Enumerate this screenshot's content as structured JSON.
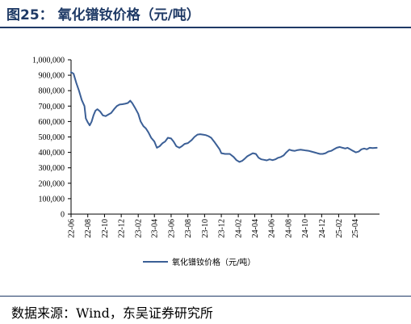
{
  "figure": {
    "title": "图25：  氧化镨钕价格（元/吨）",
    "source": "数据来源：Wind，东吴证券研究所"
  },
  "colors": {
    "series": "#3b5f96",
    "title": "#1f3a66"
  },
  "chart_data": {
    "type": "line",
    "title": "",
    "xlabel": "",
    "ylabel": "",
    "ylim": [
      0,
      1000000
    ],
    "yticks": [
      0,
      100000,
      200000,
      300000,
      400000,
      500000,
      600000,
      700000,
      800000,
      900000,
      1000000
    ],
    "ytick_labels": [
      "0",
      "100,000",
      "200,000",
      "300,000",
      "400,000",
      "500,000",
      "600,000",
      "700,000",
      "800,000",
      "900,000",
      "1,000,000"
    ],
    "xlim": [
      "2022-06-01",
      "2025-06-30"
    ],
    "xtick_labels": [
      "22-06",
      "22-08",
      "22-10",
      "22-12",
      "23-02",
      "23-04",
      "23-06",
      "23-08",
      "23-10",
      "23-12",
      "24-02",
      "24-04",
      "24-06",
      "24-08",
      "24-10",
      "24-12",
      "25-02",
      "25-04"
    ],
    "grid": false,
    "legend": "bottom",
    "series": [
      {
        "name": "氧化镨钕价格（元/吨）",
        "points": [
          [
            "2022-06-01",
            920000
          ],
          [
            "2022-06-10",
            910000
          ],
          [
            "2022-06-20",
            850000
          ],
          [
            "2022-06-30",
            800000
          ],
          [
            "2022-07-10",
            740000
          ],
          [
            "2022-07-20",
            700000
          ],
          [
            "2022-07-25",
            620000
          ],
          [
            "2022-08-01",
            595000
          ],
          [
            "2022-08-08",
            575000
          ],
          [
            "2022-08-15",
            600000
          ],
          [
            "2022-08-22",
            640000
          ],
          [
            "2022-08-29",
            670000
          ],
          [
            "2022-09-05",
            680000
          ],
          [
            "2022-09-15",
            665000
          ],
          [
            "2022-09-25",
            640000
          ],
          [
            "2022-10-05",
            635000
          ],
          [
            "2022-10-15",
            645000
          ],
          [
            "2022-10-25",
            655000
          ],
          [
            "2022-11-05",
            680000
          ],
          [
            "2022-11-15",
            700000
          ],
          [
            "2022-11-25",
            710000
          ],
          [
            "2022-12-05",
            712000
          ],
          [
            "2022-12-15",
            715000
          ],
          [
            "2022-12-25",
            720000
          ],
          [
            "2023-01-03",
            735000
          ],
          [
            "2023-01-10",
            720000
          ],
          [
            "2023-01-20",
            690000
          ],
          [
            "2023-02-01",
            650000
          ],
          [
            "2023-02-10",
            600000
          ],
          [
            "2023-02-20",
            570000
          ],
          [
            "2023-03-01",
            555000
          ],
          [
            "2023-03-10",
            530000
          ],
          [
            "2023-03-20",
            495000
          ],
          [
            "2023-04-01",
            470000
          ],
          [
            "2023-04-10",
            430000
          ],
          [
            "2023-04-20",
            440000
          ],
          [
            "2023-05-01",
            460000
          ],
          [
            "2023-05-10",
            470000
          ],
          [
            "2023-05-20",
            495000
          ],
          [
            "2023-06-01",
            490000
          ],
          [
            "2023-06-10",
            470000
          ],
          [
            "2023-06-20",
            440000
          ],
          [
            "2023-07-01",
            430000
          ],
          [
            "2023-07-10",
            440000
          ],
          [
            "2023-07-20",
            455000
          ],
          [
            "2023-08-01",
            460000
          ],
          [
            "2023-08-15",
            480000
          ],
          [
            "2023-08-25",
            500000
          ],
          [
            "2023-09-05",
            515000
          ],
          [
            "2023-09-15",
            518000
          ],
          [
            "2023-09-25",
            515000
          ],
          [
            "2023-10-05",
            512000
          ],
          [
            "2023-10-15",
            505000
          ],
          [
            "2023-10-25",
            495000
          ],
          [
            "2023-11-05",
            470000
          ],
          [
            "2023-11-15",
            445000
          ],
          [
            "2023-11-25",
            420000
          ],
          [
            "2023-12-01",
            395000
          ],
          [
            "2023-12-15",
            390000
          ],
          [
            "2024-01-01",
            390000
          ],
          [
            "2024-01-15",
            370000
          ],
          [
            "2024-01-25",
            350000
          ],
          [
            "2024-02-05",
            338000
          ],
          [
            "2024-02-15",
            345000
          ],
          [
            "2024-02-25",
            360000
          ],
          [
            "2024-03-05",
            375000
          ],
          [
            "2024-03-15",
            385000
          ],
          [
            "2024-03-25",
            395000
          ],
          [
            "2024-04-05",
            390000
          ],
          [
            "2024-04-15",
            365000
          ],
          [
            "2024-04-25",
            355000
          ],
          [
            "2024-05-05",
            352000
          ],
          [
            "2024-05-15",
            348000
          ],
          [
            "2024-05-25",
            355000
          ],
          [
            "2024-06-05",
            350000
          ],
          [
            "2024-06-15",
            355000
          ],
          [
            "2024-06-25",
            365000
          ],
          [
            "2024-07-05",
            370000
          ],
          [
            "2024-07-15",
            380000
          ],
          [
            "2024-07-25",
            400000
          ],
          [
            "2024-08-05",
            418000
          ],
          [
            "2024-08-15",
            412000
          ],
          [
            "2024-08-25",
            410000
          ],
          [
            "2024-09-05",
            415000
          ],
          [
            "2024-09-15",
            418000
          ],
          [
            "2024-09-25",
            415000
          ],
          [
            "2024-10-05",
            412000
          ],
          [
            "2024-10-15",
            410000
          ],
          [
            "2024-10-25",
            405000
          ],
          [
            "2024-11-05",
            400000
          ],
          [
            "2024-11-15",
            395000
          ],
          [
            "2024-11-25",
            390000
          ],
          [
            "2024-12-05",
            390000
          ],
          [
            "2024-12-15",
            395000
          ],
          [
            "2024-12-25",
            405000
          ],
          [
            "2025-01-05",
            410000
          ],
          [
            "2025-01-15",
            420000
          ],
          [
            "2025-01-25",
            430000
          ],
          [
            "2025-02-05",
            435000
          ],
          [
            "2025-02-15",
            430000
          ],
          [
            "2025-02-25",
            425000
          ],
          [
            "2025-03-05",
            430000
          ],
          [
            "2025-03-15",
            420000
          ],
          [
            "2025-03-25",
            410000
          ],
          [
            "2025-04-05",
            400000
          ],
          [
            "2025-04-15",
            405000
          ],
          [
            "2025-04-25",
            420000
          ],
          [
            "2025-05-05",
            425000
          ],
          [
            "2025-05-15",
            420000
          ],
          [
            "2025-05-25",
            430000
          ],
          [
            "2025-06-05",
            428000
          ],
          [
            "2025-06-20",
            430000
          ]
        ]
      }
    ]
  }
}
